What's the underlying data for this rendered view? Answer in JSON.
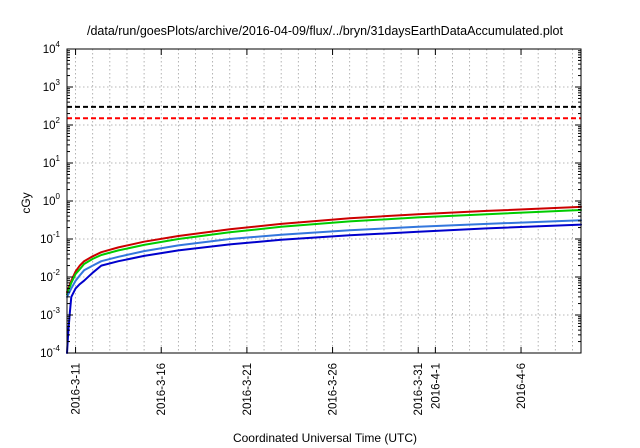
{
  "chart_data": {
    "type": "line",
    "title": "/data/run/goesPlots/archive/2016-04-09/flux/../bryn/31daysEarthDataAccumulated.plot",
    "xlabel": "Coordinated Universal Time (UTC)",
    "ylabel": "cGy",
    "y_scale": "log",
    "ylim": [
      0.0001,
      10000
    ],
    "y_ticks": [
      {
        "base": "10",
        "exp": "-4",
        "value": 0.0001
      },
      {
        "base": "10",
        "exp": "-3",
        "value": 0.001
      },
      {
        "base": "10",
        "exp": "-2",
        "value": 0.01
      },
      {
        "base": "10",
        "exp": "-1",
        "value": 0.1
      },
      {
        "base": "10",
        "exp": "0",
        "value": 1
      },
      {
        "base": "10",
        "exp": "1",
        "value": 10
      },
      {
        "base": "10",
        "exp": "2",
        "value": 100
      },
      {
        "base": "10",
        "exp": "3",
        "value": 1000
      },
      {
        "base": "10",
        "exp": "4",
        "value": 10000
      }
    ],
    "xlim": [
      "2016-03-10T12:00",
      "2016-04-09T12:00"
    ],
    "x_ticks": [
      {
        "label": "2016-3-11",
        "date": "2016-03-11"
      },
      {
        "label": "2016-3-16",
        "date": "2016-03-16"
      },
      {
        "label": "2016-3-21",
        "date": "2016-03-21"
      },
      {
        "label": "2016-3-26",
        "date": "2016-03-26"
      },
      {
        "label": "2016-3-31",
        "date": "2016-03-31"
      },
      {
        "label": "2016-4-1",
        "date": "2016-04-01"
      },
      {
        "label": "2016-4-6",
        "date": "2016-04-06"
      }
    ],
    "x_grid_dates": [
      "2016-03-12",
      "2016-03-13",
      "2016-03-14",
      "2016-03-15",
      "2016-03-17",
      "2016-03-18",
      "2016-03-19",
      "2016-03-20",
      "2016-03-22",
      "2016-03-23",
      "2016-03-24",
      "2016-03-25",
      "2016-03-27",
      "2016-03-28",
      "2016-03-29",
      "2016-03-30",
      "2016-04-02",
      "2016-04-03",
      "2016-04-04",
      "2016-04-05",
      "2016-04-07",
      "2016-04-08",
      "2016-04-09"
    ],
    "grid": true,
    "reference_lines": [
      {
        "value": 300,
        "color": "#000000",
        "style": "dashed"
      },
      {
        "value": 150,
        "color": "#ff0000",
        "style": "dashed"
      }
    ],
    "series": [
      {
        "color": "#cc0000",
        "x": [
          "2016-03-10T12:00",
          "2016-03-10T18:00",
          "2016-03-11T00:00",
          "2016-03-11T06:00",
          "2016-03-11T12:00",
          "2016-03-12T00:00",
          "2016-03-12T12:00",
          "2016-03-13T12:00",
          "2016-03-15T00:00",
          "2016-03-17T00:00",
          "2016-03-20T00:00",
          "2016-03-23T00:00",
          "2016-03-27T00:00",
          "2016-03-31T00:00",
          "2016-04-04T00:00",
          "2016-04-09T12:00"
        ],
        "y": [
          0.004,
          0.008,
          0.014,
          0.02,
          0.026,
          0.035,
          0.045,
          0.06,
          0.085,
          0.12,
          0.18,
          0.25,
          0.35,
          0.45,
          0.55,
          0.7
        ]
      },
      {
        "color": "#00cc00",
        "x": [
          "2016-03-10T12:00",
          "2016-03-10T18:00",
          "2016-03-11T00:00",
          "2016-03-11T06:00",
          "2016-03-11T12:00",
          "2016-03-12T00:00",
          "2016-03-12T12:00",
          "2016-03-13T12:00",
          "2016-03-15T00:00",
          "2016-03-17T00:00",
          "2016-03-20T00:00",
          "2016-03-23T00:00",
          "2016-03-27T00:00",
          "2016-03-31T00:00",
          "2016-04-04T00:00",
          "2016-04-09T12:00"
        ],
        "y": [
          0.0035,
          0.007,
          0.012,
          0.016,
          0.022,
          0.03,
          0.038,
          0.05,
          0.07,
          0.1,
          0.15,
          0.21,
          0.29,
          0.37,
          0.45,
          0.58
        ]
      },
      {
        "color": "#3377dd",
        "x": [
          "2016-03-10T12:00",
          "2016-03-10T18:00",
          "2016-03-11T00:00",
          "2016-03-11T06:00",
          "2016-03-11T12:00",
          "2016-03-12T00:00",
          "2016-03-12T12:00",
          "2016-03-13T12:00",
          "2016-03-15T00:00",
          "2016-03-17T00:00",
          "2016-03-20T00:00",
          "2016-03-23T00:00",
          "2016-03-27T00:00",
          "2016-03-31T00:00",
          "2016-04-04T00:00",
          "2016-04-09T12:00"
        ],
        "y": [
          0.003,
          0.005,
          0.008,
          0.011,
          0.015,
          0.02,
          0.026,
          0.034,
          0.048,
          0.068,
          0.1,
          0.13,
          0.17,
          0.21,
          0.25,
          0.31
        ]
      },
      {
        "color": "#0000cc",
        "x": [
          "2016-03-10T12:00",
          "2016-03-10T14:00",
          "2016-03-10T16:00",
          "2016-03-10T18:00",
          "2016-03-11T00:00",
          "2016-03-11T06:00",
          "2016-03-11T12:00",
          "2016-03-12T00:00",
          "2016-03-12T12:00",
          "2016-03-13T12:00",
          "2016-03-15T00:00",
          "2016-03-17T00:00",
          "2016-03-20T00:00",
          "2016-03-23T00:00",
          "2016-03-27T00:00",
          "2016-03-31T00:00",
          "2016-04-04T00:00",
          "2016-04-09T12:00"
        ],
        "y": [
          0.0001,
          0.0004,
          0.0012,
          0.003,
          0.005,
          0.0065,
          0.008,
          0.013,
          0.02,
          0.026,
          0.036,
          0.05,
          0.072,
          0.095,
          0.125,
          0.155,
          0.19,
          0.24
        ]
      }
    ]
  }
}
